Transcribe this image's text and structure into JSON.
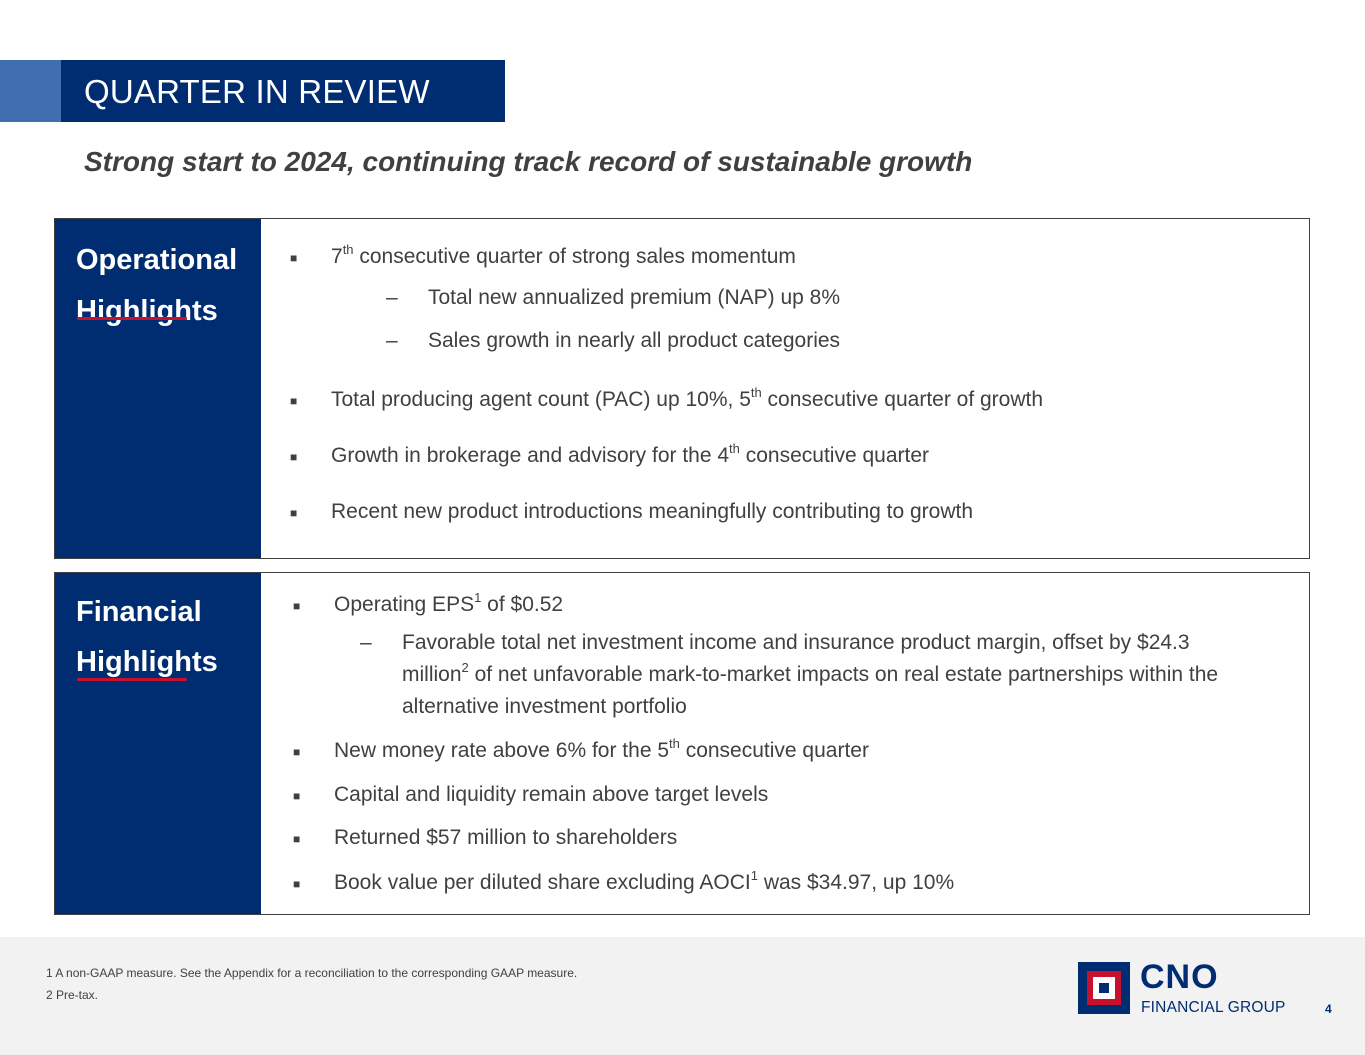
{
  "header": {
    "title": "QUARTER IN REVIEW",
    "subtitle": "Strong start to 2024, continuing track record of sustainable growth"
  },
  "operational": {
    "label_line1": "Operational",
    "label_line2": "Highlights",
    "b1_a": "7",
    "b1_sup": "th",
    "b1_b": " consecutive quarter of strong sales momentum",
    "s1": "Total new annualized premium (NAP) up 8%",
    "s2": "Sales growth in nearly all product categories",
    "b2_a": "Total producing agent count (PAC) up 10%, 5",
    "b2_sup": "th",
    "b2_b": " consecutive quarter of growth",
    "b3_a": "Growth in brokerage and advisory for the 4",
    "b3_sup": "th",
    "b3_b": " consecutive quarter",
    "b4": "Recent new product introductions meaningfully contributing to growth"
  },
  "financial": {
    "label_line1": "Financial",
    "label_line2": "Highlights",
    "b1_a": "Operating EPS",
    "b1_sup": "1",
    "b1_b": " of $0.52",
    "s1_line1": "Favorable total net investment income and insurance product margin, offset by $24.3",
    "s1_line2_a": "million",
    "s1_line2_sup": "2",
    "s1_line2_b": " of net unfavorable mark-to-market impacts on real estate partnerships within the",
    "s1_line3": "alternative investment portfolio",
    "b2_a": "New money rate above 6% for the 5",
    "b2_sup": "th",
    "b2_b": " consecutive quarter",
    "b3": "Capital and liquidity remain above target levels",
    "b4": "Returned $57 million to shareholders",
    "b5_a": "Book value per diluted share excluding AOCI",
    "b5_sup": "1",
    "b5_b": " was $34.97, up 10%"
  },
  "markers": {
    "bullet": "■",
    "dash": "–"
  },
  "footer": {
    "fn1": "1  A non-GAAP measure. See the Appendix for a reconciliation to the corresponding GAAP measure.",
    "fn2": "2  Pre-tax.",
    "logo_main": "CNO",
    "logo_sub": "FINANCIAL GROUP",
    "page_number": "4"
  },
  "colors": {
    "navy": "#002d72",
    "accent_blue": "#3f6fae",
    "red": "#c8102e",
    "footer_bg": "#f2f2f2"
  }
}
